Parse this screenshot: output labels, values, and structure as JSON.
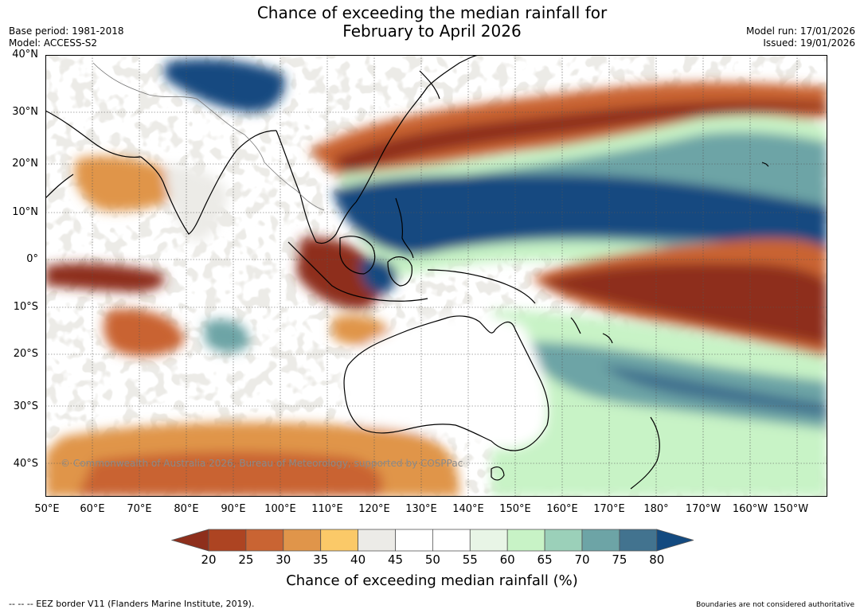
{
  "title": {
    "line1": "Chance of exceeding the median rainfall for",
    "line2": "February to April 2026"
  },
  "meta_left": {
    "base_period": "Base period: 1981-2018",
    "model": "Model: ACCESS-S2"
  },
  "meta_right": {
    "model_run": "Model run: 17/01/2026",
    "issued": "Issued: 19/01/2026"
  },
  "lat_labels": [
    "40°N",
    "30°N",
    "20°N",
    "10°N",
    "0°",
    "10°S",
    "20°S",
    "30°S",
    "40°S"
  ],
  "lon_labels": [
    "50°E",
    "60°E",
    "70°E",
    "80°E",
    "90°E",
    "100°E",
    "110°E",
    "120°E",
    "130°E",
    "140°E",
    "150°E",
    "160°E",
    "170°E",
    "180°",
    "170°W",
    "160°W",
    "150°W"
  ],
  "colorbar": {
    "ticks": [
      "20",
      "25",
      "30",
      "35",
      "40",
      "45",
      "50",
      "55",
      "60",
      "65",
      "70",
      "75",
      "80"
    ],
    "colors": [
      "#8e2f1c",
      "#ad4422",
      "#c96433",
      "#e0954a",
      "#fbc968",
      "#ecebe7",
      "#ffffff",
      "#ffffff",
      "#e8f5e6",
      "#c8f3c6",
      "#9bd0b9",
      "#6da4a6",
      "#42738f",
      "#134a80"
    ],
    "label": "Chance of exceeding median rainfall (%)"
  },
  "copyright": "© Commonwealth of Australia 2026, Bureau of Meteorology, supported by COSPPac",
  "footer_left": "--  --  -- EEZ border V11 (Flanders Marine Institute, 2019).",
  "footer_right": "Boundaries are not considered authoritative"
}
